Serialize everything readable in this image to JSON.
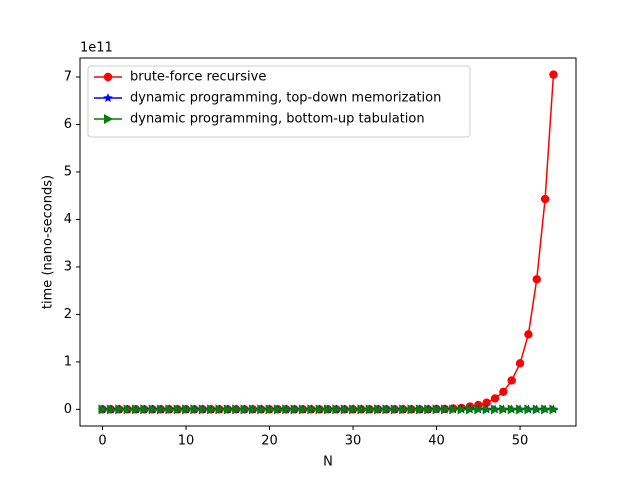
{
  "chart_data": {
    "type": "line",
    "xlabel": "N",
    "ylabel": "time (nano-seconds)",
    "offset_text": "1e11",
    "x": [
      0,
      1,
      2,
      3,
      4,
      5,
      6,
      7,
      8,
      9,
      10,
      11,
      12,
      13,
      14,
      15,
      16,
      17,
      18,
      19,
      20,
      21,
      22,
      23,
      24,
      25,
      26,
      27,
      28,
      29,
      30,
      31,
      32,
      33,
      34,
      35,
      36,
      37,
      38,
      39,
      40,
      41,
      42,
      43,
      44,
      45,
      46,
      47,
      48,
      49,
      50,
      51,
      52,
      53,
      54
    ],
    "series": [
      {
        "name": "brute-force recursive",
        "color": "#ff0000",
        "marker": "circle",
        "values": [
          0,
          0,
          0,
          0,
          0,
          0,
          0,
          0,
          0,
          0,
          0,
          0,
          0,
          0,
          0,
          0,
          0,
          0,
          0,
          0,
          0,
          0,
          0,
          0,
          0,
          0,
          0,
          0,
          0,
          0,
          0,
          0,
          0,
          0,
          0,
          0,
          0,
          0,
          0,
          0,
          0.01,
          0.01,
          0.02,
          0.03,
          0.06,
          0.09,
          0.14,
          0.23,
          0.37,
          0.61,
          0.97,
          1.58,
          2.74,
          4.43,
          7.05
        ]
      },
      {
        "name": "dynamic programming, top-down memorization",
        "color": "#0000ff",
        "marker": "star",
        "values": [
          0,
          0,
          0,
          0,
          0,
          0,
          0,
          0,
          0,
          0,
          0,
          0,
          0,
          0,
          0,
          0,
          0,
          0,
          0,
          0,
          0,
          0,
          0,
          0,
          0,
          0,
          0,
          0,
          0,
          0,
          0,
          0,
          0,
          0,
          0,
          0,
          0,
          0,
          0,
          0,
          0,
          0,
          0,
          0,
          0,
          0,
          0,
          0,
          0,
          0,
          0,
          0,
          0,
          0,
          0
        ]
      },
      {
        "name": "dynamic programming, bottom-up tabulation",
        "color": "#008000",
        "marker": "triangle-right",
        "values": [
          0,
          0,
          0,
          0,
          0,
          0,
          0,
          0,
          0,
          0,
          0,
          0,
          0,
          0,
          0,
          0,
          0,
          0,
          0,
          0,
          0,
          0,
          0,
          0,
          0,
          0,
          0,
          0,
          0,
          0,
          0,
          0,
          0,
          0,
          0,
          0,
          0,
          0,
          0,
          0,
          0,
          0,
          0,
          0,
          0,
          0,
          0,
          0,
          0,
          0,
          0,
          0,
          0,
          0,
          0
        ]
      }
    ],
    "xlim": [
      -2.7,
      56.7
    ],
    "xticks": [
      0,
      10,
      20,
      30,
      40,
      50
    ],
    "ylim": [
      -0.35,
      7.4
    ],
    "yticks": [
      0,
      1,
      2,
      3,
      4,
      5,
      6,
      7
    ],
    "legend": "upper left",
    "grid": false
  }
}
